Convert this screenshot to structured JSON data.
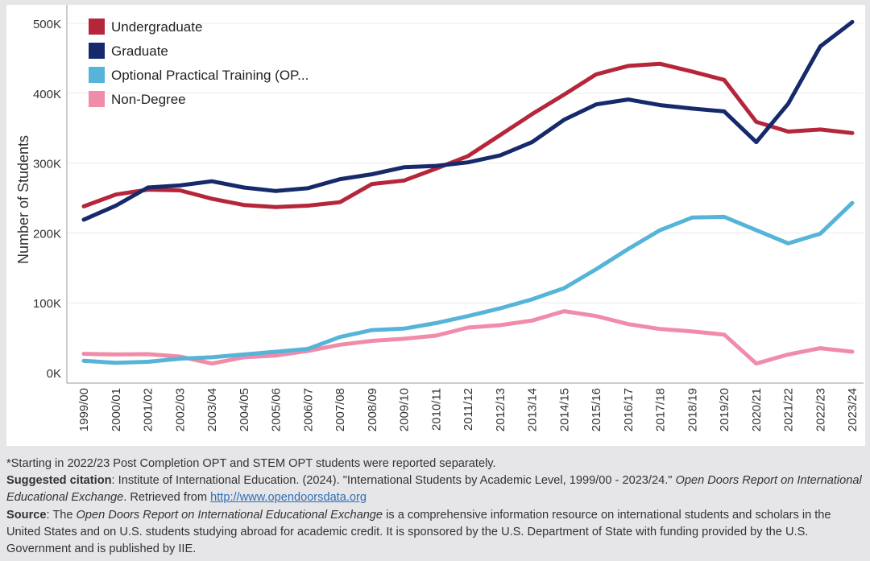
{
  "chart_data": {
    "type": "line",
    "ylabel": "Number of Students",
    "xlabel": "",
    "ylim": [
      0,
      520000
    ],
    "yticks": [
      0,
      100000,
      200000,
      300000,
      400000,
      500000
    ],
    "ytick_labels": [
      "0K",
      "100K",
      "200K",
      "300K",
      "400K",
      "500K"
    ],
    "grid": "horizontal",
    "legend_position": "top-left",
    "categories": [
      "1999/00",
      "2000/01",
      "2001/02",
      "2002/03",
      "2003/04",
      "2004/05",
      "2005/06",
      "2006/07",
      "2007/08",
      "2008/09",
      "2009/10",
      "2010/11",
      "2011/12",
      "2012/13",
      "2013/14",
      "2014/15",
      "2015/16",
      "2016/17",
      "2017/18",
      "2018/19",
      "2019/20",
      "2020/21",
      "2021/22",
      "2022/23",
      "2023/24"
    ],
    "series": [
      {
        "name": "Undergraduate",
        "color": "#b5263b",
        "values": [
          238000,
          255000,
          262000,
          261000,
          249000,
          240000,
          237000,
          239000,
          244000,
          270000,
          275000,
          292000,
          310000,
          340000,
          370000,
          398000,
          427000,
          439000,
          442000,
          431000,
          419000,
          359000,
          345000,
          348000,
          343000
        ]
      },
      {
        "name": "Graduate",
        "color": "#15296b",
        "values": [
          219000,
          239000,
          265000,
          268000,
          274000,
          265000,
          260000,
          264000,
          277000,
          284000,
          294000,
          296000,
          301000,
          311000,
          330000,
          362000,
          384000,
          391000,
          383000,
          378000,
          374000,
          330000,
          385000,
          467000,
          502000
        ]
      },
      {
        "name": "Optional Practical Training (OPT)",
        "display_name": "Optional Practical Training (OP...",
        "color": "#55b4d8",
        "values": [
          17000,
          14000,
          15500,
          20000,
          22000,
          26000,
          30000,
          34000,
          51000,
          61000,
          63000,
          71000,
          81000,
          92000,
          105000,
          121000,
          148000,
          177000,
          204000,
          222000,
          223000,
          204000,
          185000,
          199000,
          243000
        ]
      },
      {
        "name": "Non-Degree",
        "color": "#f08ca9",
        "values": [
          27000,
          26000,
          26500,
          23000,
          13000,
          22000,
          24500,
          31000,
          40000,
          45500,
          48500,
          53000,
          64500,
          68000,
          74500,
          88000,
          81000,
          69500,
          62500,
          59000,
          54500,
          13000,
          26000,
          35000,
          30000
        ]
      }
    ]
  },
  "notes": {
    "line1": "*Starting in 2022/23 Post Completion OPT and STEM OPT students were reported separately.",
    "citation_label": "Suggested citation",
    "citation_text_1": ": Institute of International Education. (2024). \"International Students by Academic Level, 1999/00 - 2023/24.\" ",
    "citation_italic": "Open Doors Report on International Educational Exchange",
    "citation_text_2": ". Retrieved from ",
    "citation_link": "http://www.opendoorsdata.org",
    "source_label": "Source",
    "source_text_1": ": The ",
    "source_italic": "Open Doors Report on International Educational Exchange",
    "source_text_2": " is a comprehensive information resource on international students and scholars in the United States and on U.S. students studying abroad for academic credit. It is sponsored by the U.S. Department of State with funding provided by the U.S. Government and is published by IIE."
  }
}
